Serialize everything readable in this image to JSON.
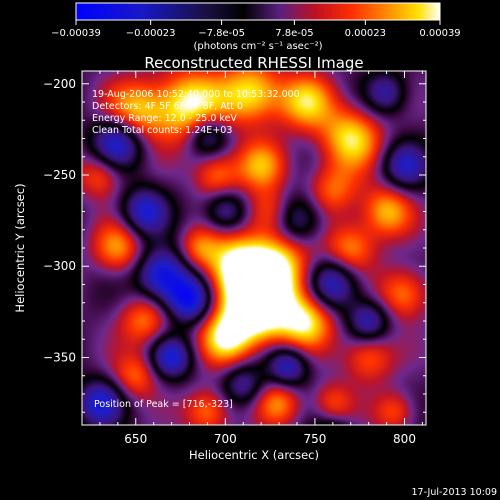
{
  "colorbar": {
    "ticks": [
      "-0.00039",
      "-0.00023",
      "-7.8e-05",
      "7.8e-05",
      "0.00023",
      "0.00039"
    ],
    "tick_values": [
      -0.00039,
      -0.00023,
      -7.8e-05,
      7.8e-05,
      0.00023,
      0.00039
    ],
    "units_label": "(photons cm⁻² s⁻¹ asec⁻²)",
    "range": [
      -0.00039,
      0.00039
    ],
    "colormap": "blue-black-purple-red-orange-yellow-white"
  },
  "chart_data": {
    "type": "heatmap",
    "title": "Reconstructed RHESSI Image",
    "xlabel": "Heliocentric X (arcsec)",
    "ylabel": "Heliocentric Y (arcsec)",
    "xlim": [
      620,
      812
    ],
    "ylim": [
      -387,
      -193
    ],
    "x_ticks": [
      650,
      700,
      750,
      800
    ],
    "y_ticks": [
      -200,
      -250,
      -300,
      -350
    ],
    "x_tick_labels": [
      "650",
      "700",
      "750",
      "800"
    ],
    "y_tick_labels": [
      "-200",
      "-250",
      "-300",
      "-350"
    ],
    "peak": [
      716,
      -323
    ],
    "annotations": [
      "19-Aug-2006 10:52:40.000 to 10:53:32.000",
      "Detectors: 4F 5F 6F 7F 8F, Att 0",
      "Energy Range: 12.0 - 25.0 keV",
      "Clean    Total counts: 1.24E+03"
    ],
    "peak_label": "Position of Peak = [716,-323]"
  },
  "footer": {
    "timestamp": "17-Jul-2013 10:09"
  }
}
